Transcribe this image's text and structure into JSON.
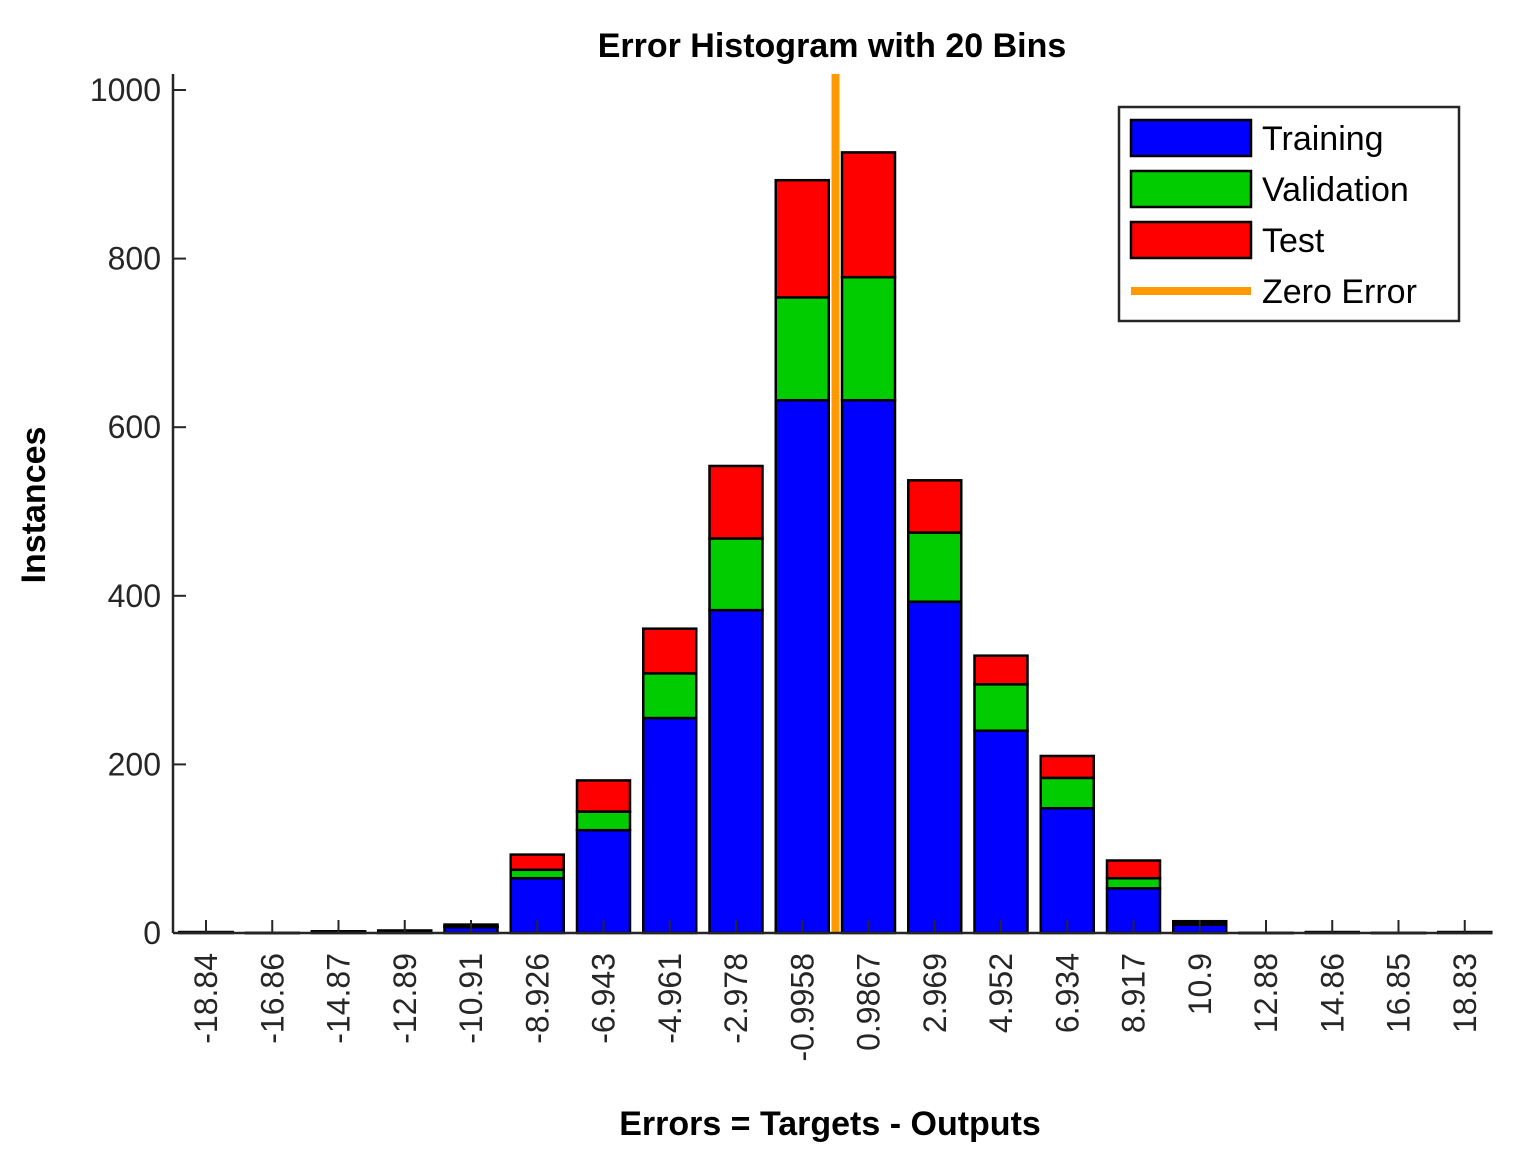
{
  "chart_data": {
    "type": "bar",
    "stacked": true,
    "title": "Error Histogram with 20 Bins",
    "xlabel": "Errors = Targets - Outputs",
    "ylabel": "Instances",
    "ylim": [
      0,
      1000
    ],
    "yticks": [
      0,
      200,
      400,
      600,
      800,
      1000
    ],
    "categories": [
      "-18.84",
      "-16.86",
      "-14.87",
      "-12.89",
      "-10.91",
      "-8.926",
      "-6.943",
      "-4.961",
      "-2.978",
      "-0.9958",
      "0.9867",
      "2.969",
      "4.952",
      "6.934",
      "8.917",
      "10.9",
      "12.88",
      "14.86",
      "16.85",
      "18.83"
    ],
    "series": [
      {
        "name": "Training",
        "color": "#0000ff",
        "values": [
          1,
          0,
          2,
          2,
          7,
          65,
          122,
          255,
          383,
          632,
          632,
          393,
          240,
          148,
          53,
          10,
          0,
          1,
          0,
          1
        ]
      },
      {
        "name": "Validation",
        "color": "#00cc00",
        "values": [
          0,
          0,
          0,
          0,
          1,
          10,
          22,
          53,
          85,
          122,
          146,
          82,
          55,
          36,
          12,
          2,
          0,
          0,
          0,
          0
        ]
      },
      {
        "name": "Test",
        "color": "#ff0000",
        "values": [
          0,
          0,
          0,
          1,
          2,
          18,
          37,
          53,
          86,
          139,
          148,
          62,
          34,
          26,
          21,
          2,
          0,
          0,
          0,
          0
        ]
      }
    ],
    "reference_line": {
      "name": "Zero Error",
      "color": "#ff9900",
      "x": 0
    },
    "legend": {
      "position": "top-right",
      "entries": [
        "Training",
        "Validation",
        "Test",
        "Zero Error"
      ]
    },
    "grid": false
  }
}
